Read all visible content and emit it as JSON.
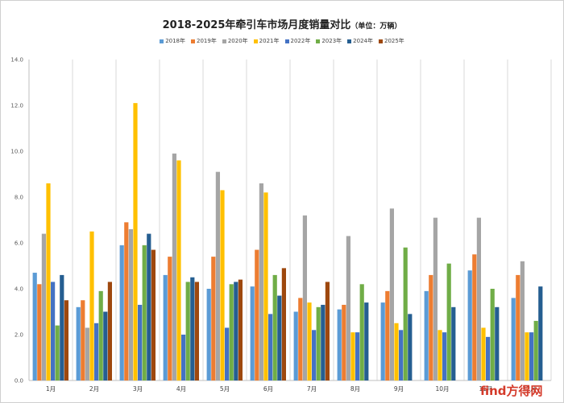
{
  "chart_data": {
    "type": "bar",
    "title": "2018-2025年牵引车市场月度销量对比",
    "title_unit": "（单位：万辆）",
    "categories": [
      "1月",
      "2月",
      "3月",
      "4月",
      "5月",
      "6月",
      "7月",
      "8月",
      "9月",
      "10月",
      "11月",
      "12月"
    ],
    "ylim": [
      0,
      14
    ],
    "yticks": [
      "0.0",
      "2.0",
      "4.0",
      "6.0",
      "8.0",
      "10.0",
      "12.0",
      "14.0"
    ],
    "legend_position": "top",
    "grid": "vertical category separators",
    "series": [
      {
        "name": "2018年",
        "color": "#5b9bd5",
        "values": [
          4.7,
          3.2,
          5.9,
          4.6,
          4.0,
          4.1,
          3.0,
          3.1,
          3.4,
          3.9,
          4.8,
          3.6
        ]
      },
      {
        "name": "2019年",
        "color": "#ed7d31",
        "values": [
          4.2,
          3.5,
          6.9,
          5.4,
          5.4,
          5.7,
          3.6,
          3.3,
          3.9,
          4.6,
          5.5,
          4.6
        ]
      },
      {
        "name": "2020年",
        "color": "#a5a5a5",
        "values": [
          6.4,
          2.3,
          6.6,
          9.9,
          9.1,
          8.6,
          7.2,
          6.3,
          7.5,
          7.1,
          7.1,
          5.2
        ]
      },
      {
        "name": "2021年",
        "color": "#ffc000",
        "values": [
          8.6,
          6.5,
          12.1,
          9.6,
          8.3,
          8.2,
          3.4,
          2.1,
          2.5,
          2.2,
          2.3,
          2.1
        ]
      },
      {
        "name": "2022年",
        "color": "#4472c4",
        "values": [
          4.3,
          2.5,
          3.3,
          2.0,
          2.3,
          2.9,
          2.2,
          2.1,
          2.2,
          2.1,
          1.9,
          2.1
        ]
      },
      {
        "name": "2023年",
        "color": "#70ad47",
        "values": [
          2.4,
          3.9,
          5.9,
          4.3,
          4.2,
          4.6,
          3.2,
          4.2,
          5.8,
          5.1,
          4.0,
          2.6
        ]
      },
      {
        "name": "2024年",
        "color": "#255e91",
        "values": [
          4.6,
          3.0,
          6.4,
          4.5,
          4.3,
          3.7,
          3.3,
          3.4,
          2.9,
          3.2,
          3.2,
          4.1
        ]
      },
      {
        "name": "2025年",
        "color": "#9e480e",
        "values": [
          3.5,
          4.3,
          5.7,
          4.3,
          4.4,
          4.9,
          4.3,
          null,
          null,
          null,
          null,
          null
        ]
      }
    ]
  },
  "watermark": "find方得网"
}
